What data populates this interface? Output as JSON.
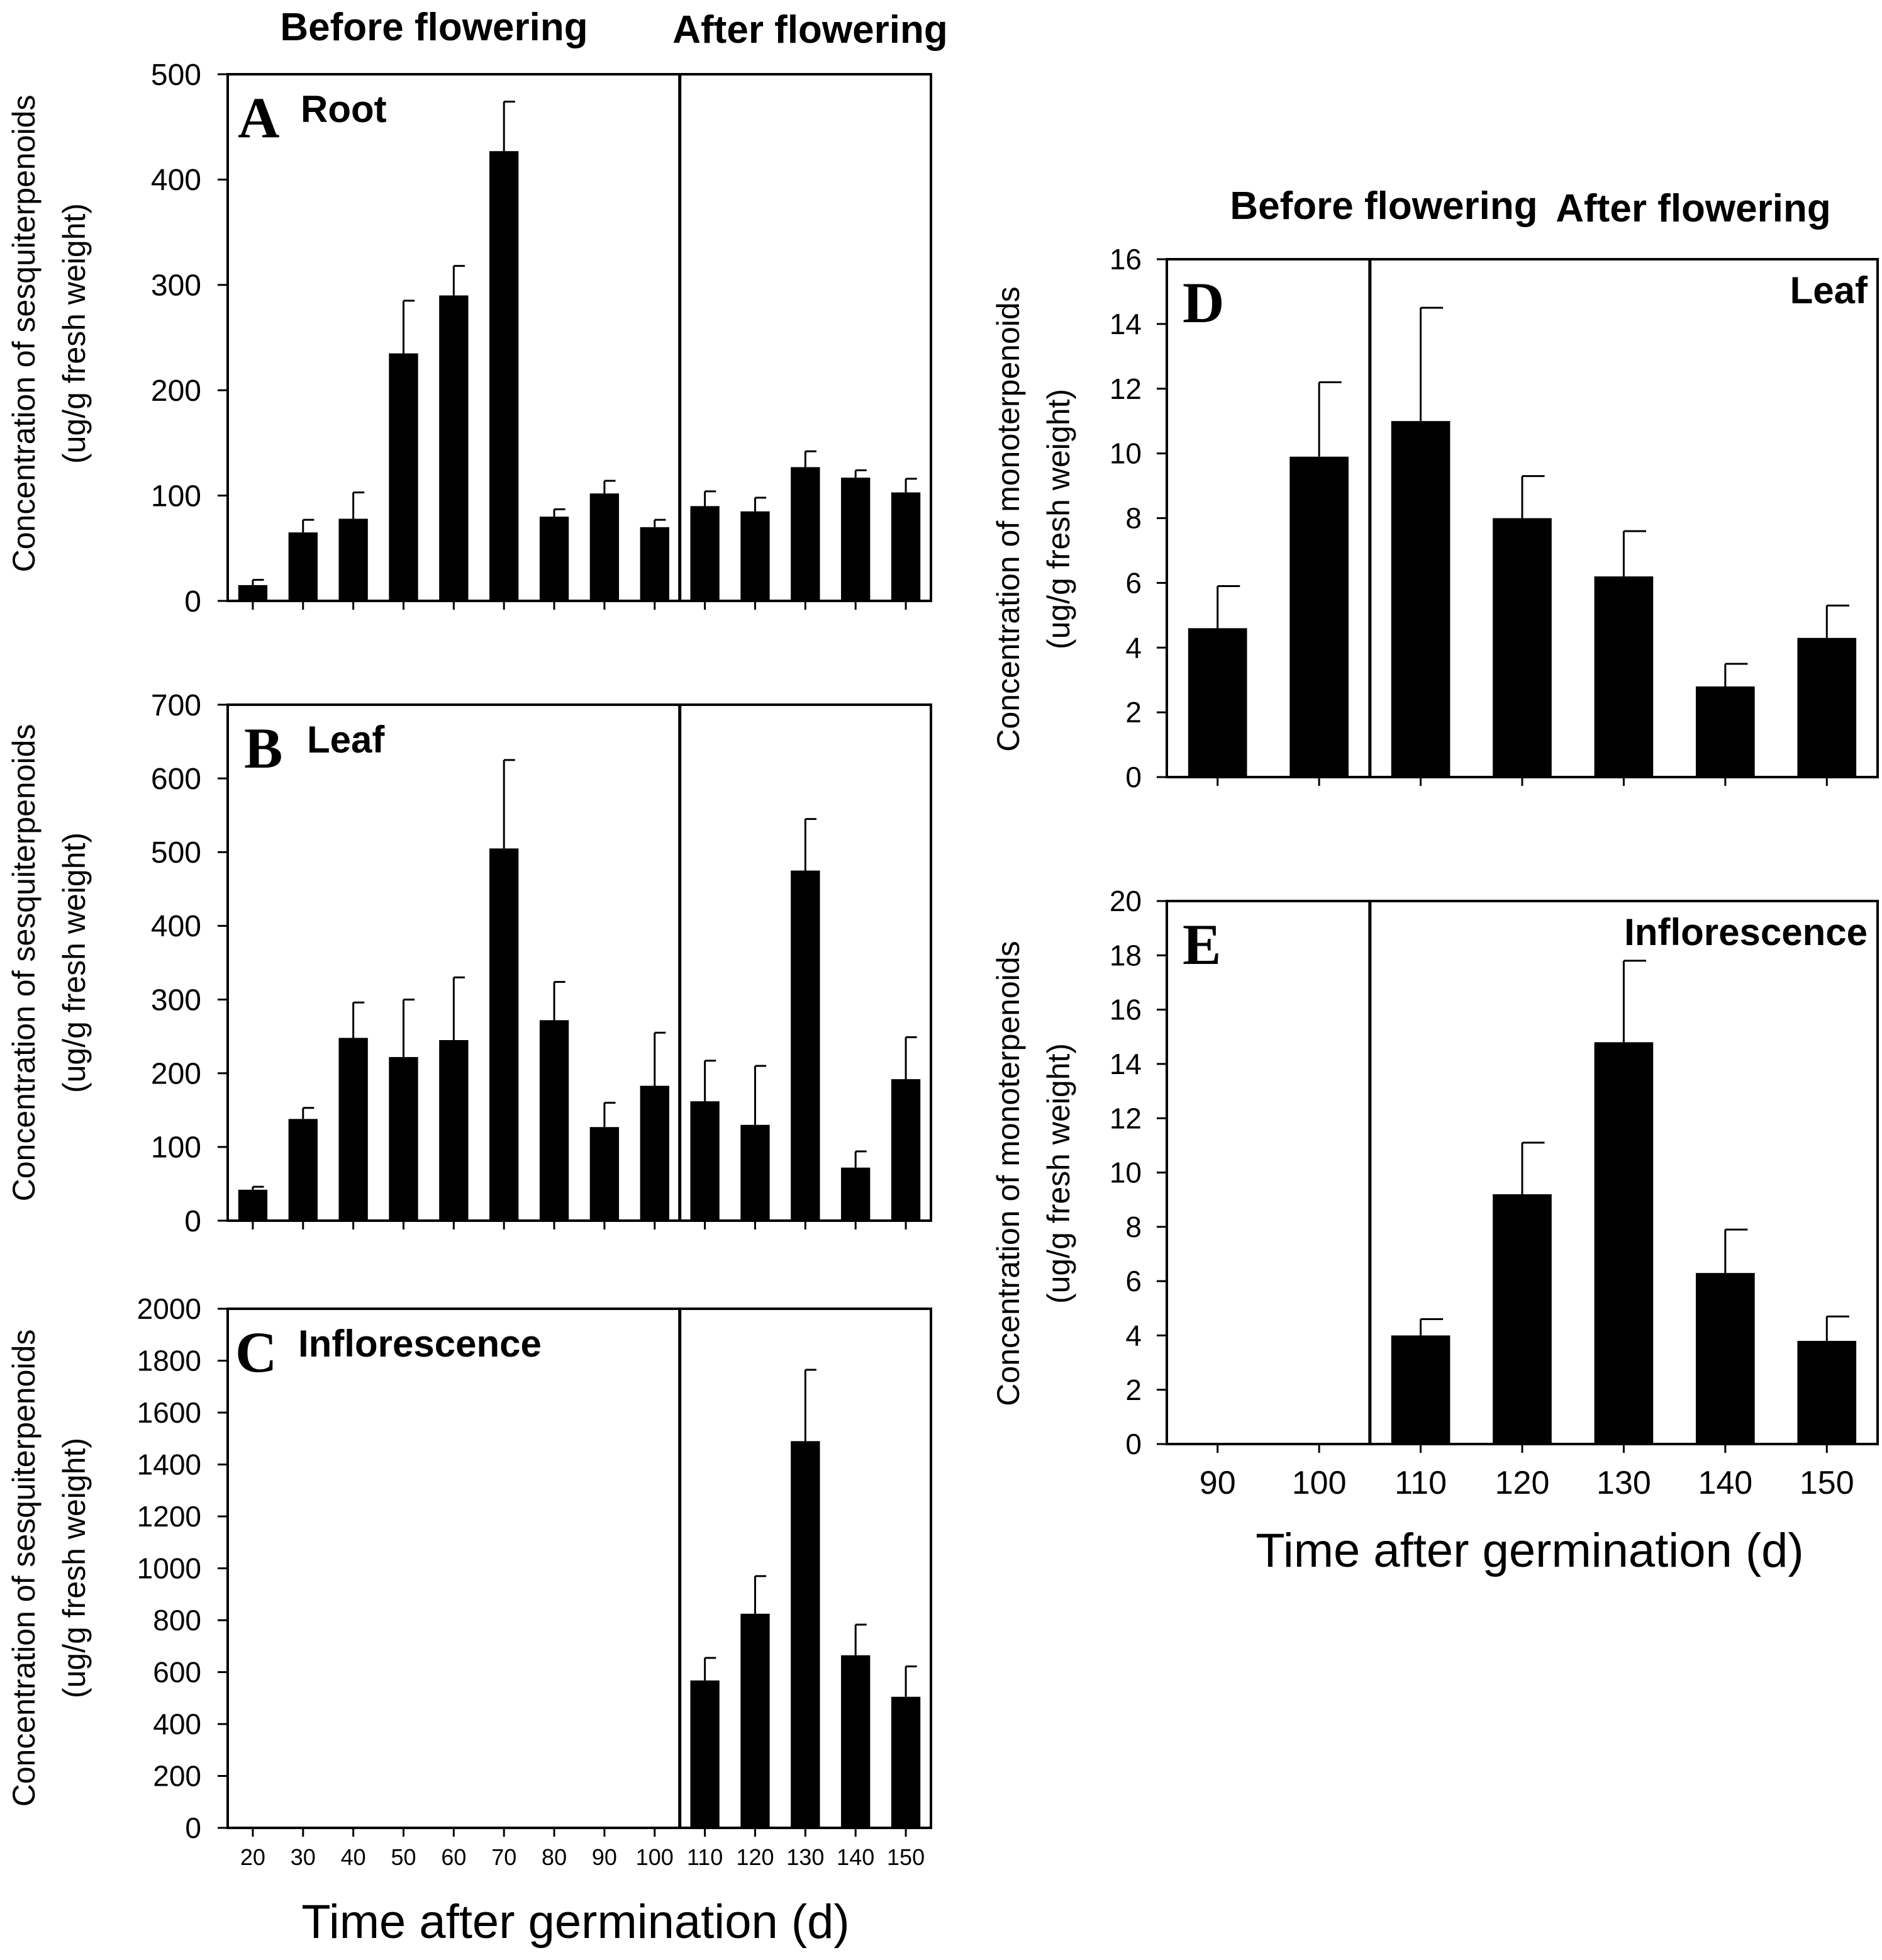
{
  "colors": {
    "bar": "#000000",
    "axis": "#000000",
    "background": "#ffffff"
  },
  "phase_labels": {
    "before": "Before flowering",
    "after": "After flowering"
  },
  "xlabel": "Time after germination (d)",
  "chart_data": [
    {
      "panel": "A",
      "title": "Root",
      "type": "bar",
      "ylabel": [
        "Concentration of sesquiterpenoids",
        "(ug/g fresh weight)"
      ],
      "categories": [
        "20",
        "30",
        "40",
        "50",
        "60",
        "70",
        "80",
        "90",
        "100",
        "110",
        "120",
        "130",
        "140",
        "150"
      ],
      "values": [
        15,
        65,
        78,
        235,
        290,
        427,
        80,
        102,
        70,
        90,
        85,
        127,
        117,
        103
      ],
      "errors": [
        5,
        12,
        25,
        50,
        28,
        47,
        7,
        12,
        7,
        14,
        13,
        15,
        7,
        13
      ],
      "ylim": [
        0,
        500
      ],
      "yticks": [
        0,
        100,
        200,
        300,
        400,
        500
      ],
      "flowering_boundary_after_category": "100",
      "show_xtick_labels": false,
      "legend": "none",
      "grid": false
    },
    {
      "panel": "B",
      "title": "Leaf",
      "type": "bar",
      "ylabel": [
        "Concentration of sesquiterpenoids",
        "(ug/g fresh weight)"
      ],
      "categories": [
        "20",
        "30",
        "40",
        "50",
        "60",
        "70",
        "80",
        "90",
        "100",
        "110",
        "120",
        "130",
        "140",
        "150"
      ],
      "values": [
        42,
        138,
        248,
        222,
        245,
        505,
        272,
        127,
        183,
        162,
        130,
        475,
        72,
        192
      ],
      "errors": [
        4,
        15,
        48,
        78,
        85,
        120,
        52,
        33,
        72,
        55,
        80,
        70,
        22,
        57
      ],
      "ylim": [
        0,
        700
      ],
      "yticks": [
        0,
        100,
        200,
        300,
        400,
        500,
        600,
        700
      ],
      "flowering_boundary_after_category": "100",
      "show_xtick_labels": false,
      "legend": "none",
      "grid": false
    },
    {
      "panel": "C",
      "title": "Inflorescence",
      "type": "bar",
      "ylabel": [
        "Concentration of sesquiterpenoids",
        "(ug/g fresh weight)"
      ],
      "categories": [
        "20",
        "30",
        "40",
        "50",
        "60",
        "70",
        "80",
        "90",
        "100",
        "110",
        "120",
        "130",
        "140",
        "150"
      ],
      "xtick_labels": [
        "20",
        "30",
        "40",
        "50",
        "60",
        "70",
        "80",
        "90",
        "100",
        "110",
        "120",
        "130",
        "140",
        "150"
      ],
      "values": [
        0,
        0,
        0,
        0,
        0,
        0,
        0,
        0,
        0,
        568,
        825,
        1490,
        665,
        505
      ],
      "errors": [
        0,
        0,
        0,
        0,
        0,
        0,
        0,
        0,
        0,
        87,
        145,
        275,
        118,
        117
      ],
      "ylim": [
        0,
        2000
      ],
      "yticks": [
        0,
        200,
        400,
        600,
        800,
        1000,
        1200,
        1400,
        1600,
        1800,
        2000
      ],
      "flowering_boundary_after_category": "100",
      "show_xtick_labels": true,
      "legend": "none",
      "grid": false
    },
    {
      "panel": "D",
      "title": "Leaf",
      "type": "bar",
      "ylabel": [
        "Concentration of monoterpenoids",
        "(ug/g fresh weight)"
      ],
      "categories": [
        "90",
        "100",
        "110",
        "120",
        "130",
        "140",
        "150"
      ],
      "values": [
        4.6,
        9.9,
        11.0,
        8.0,
        6.2,
        2.8,
        4.3
      ],
      "errors": [
        1.3,
        2.3,
        3.5,
        1.3,
        1.4,
        0.7,
        1.0
      ],
      "ylim": [
        0,
        16
      ],
      "yticks": [
        0,
        2,
        4,
        6,
        8,
        10,
        12,
        14,
        16
      ],
      "flowering_boundary_after_category": "100",
      "show_xtick_labels": false,
      "legend": "none",
      "grid": false
    },
    {
      "panel": "E",
      "title": "Inflorescence",
      "type": "bar",
      "ylabel": [
        "Concentration of monoterpenoids",
        "(ug/g fresh weight)"
      ],
      "categories": [
        "90",
        "100",
        "110",
        "120",
        "130",
        "140",
        "150"
      ],
      "xtick_labels": [
        "90",
        "100",
        "110",
        "120",
        "130",
        "140",
        "150"
      ],
      "values": [
        0,
        0,
        4.0,
        9.2,
        14.8,
        6.3,
        3.8
      ],
      "errors": [
        0,
        0,
        0.6,
        1.9,
        3.0,
        1.6,
        0.9
      ],
      "ylim": [
        0,
        20
      ],
      "yticks": [
        0,
        2,
        4,
        6,
        8,
        10,
        12,
        14,
        16,
        18,
        20
      ],
      "flowering_boundary_after_category": "100",
      "show_xtick_labels": true,
      "legend": "none",
      "grid": false
    }
  ]
}
